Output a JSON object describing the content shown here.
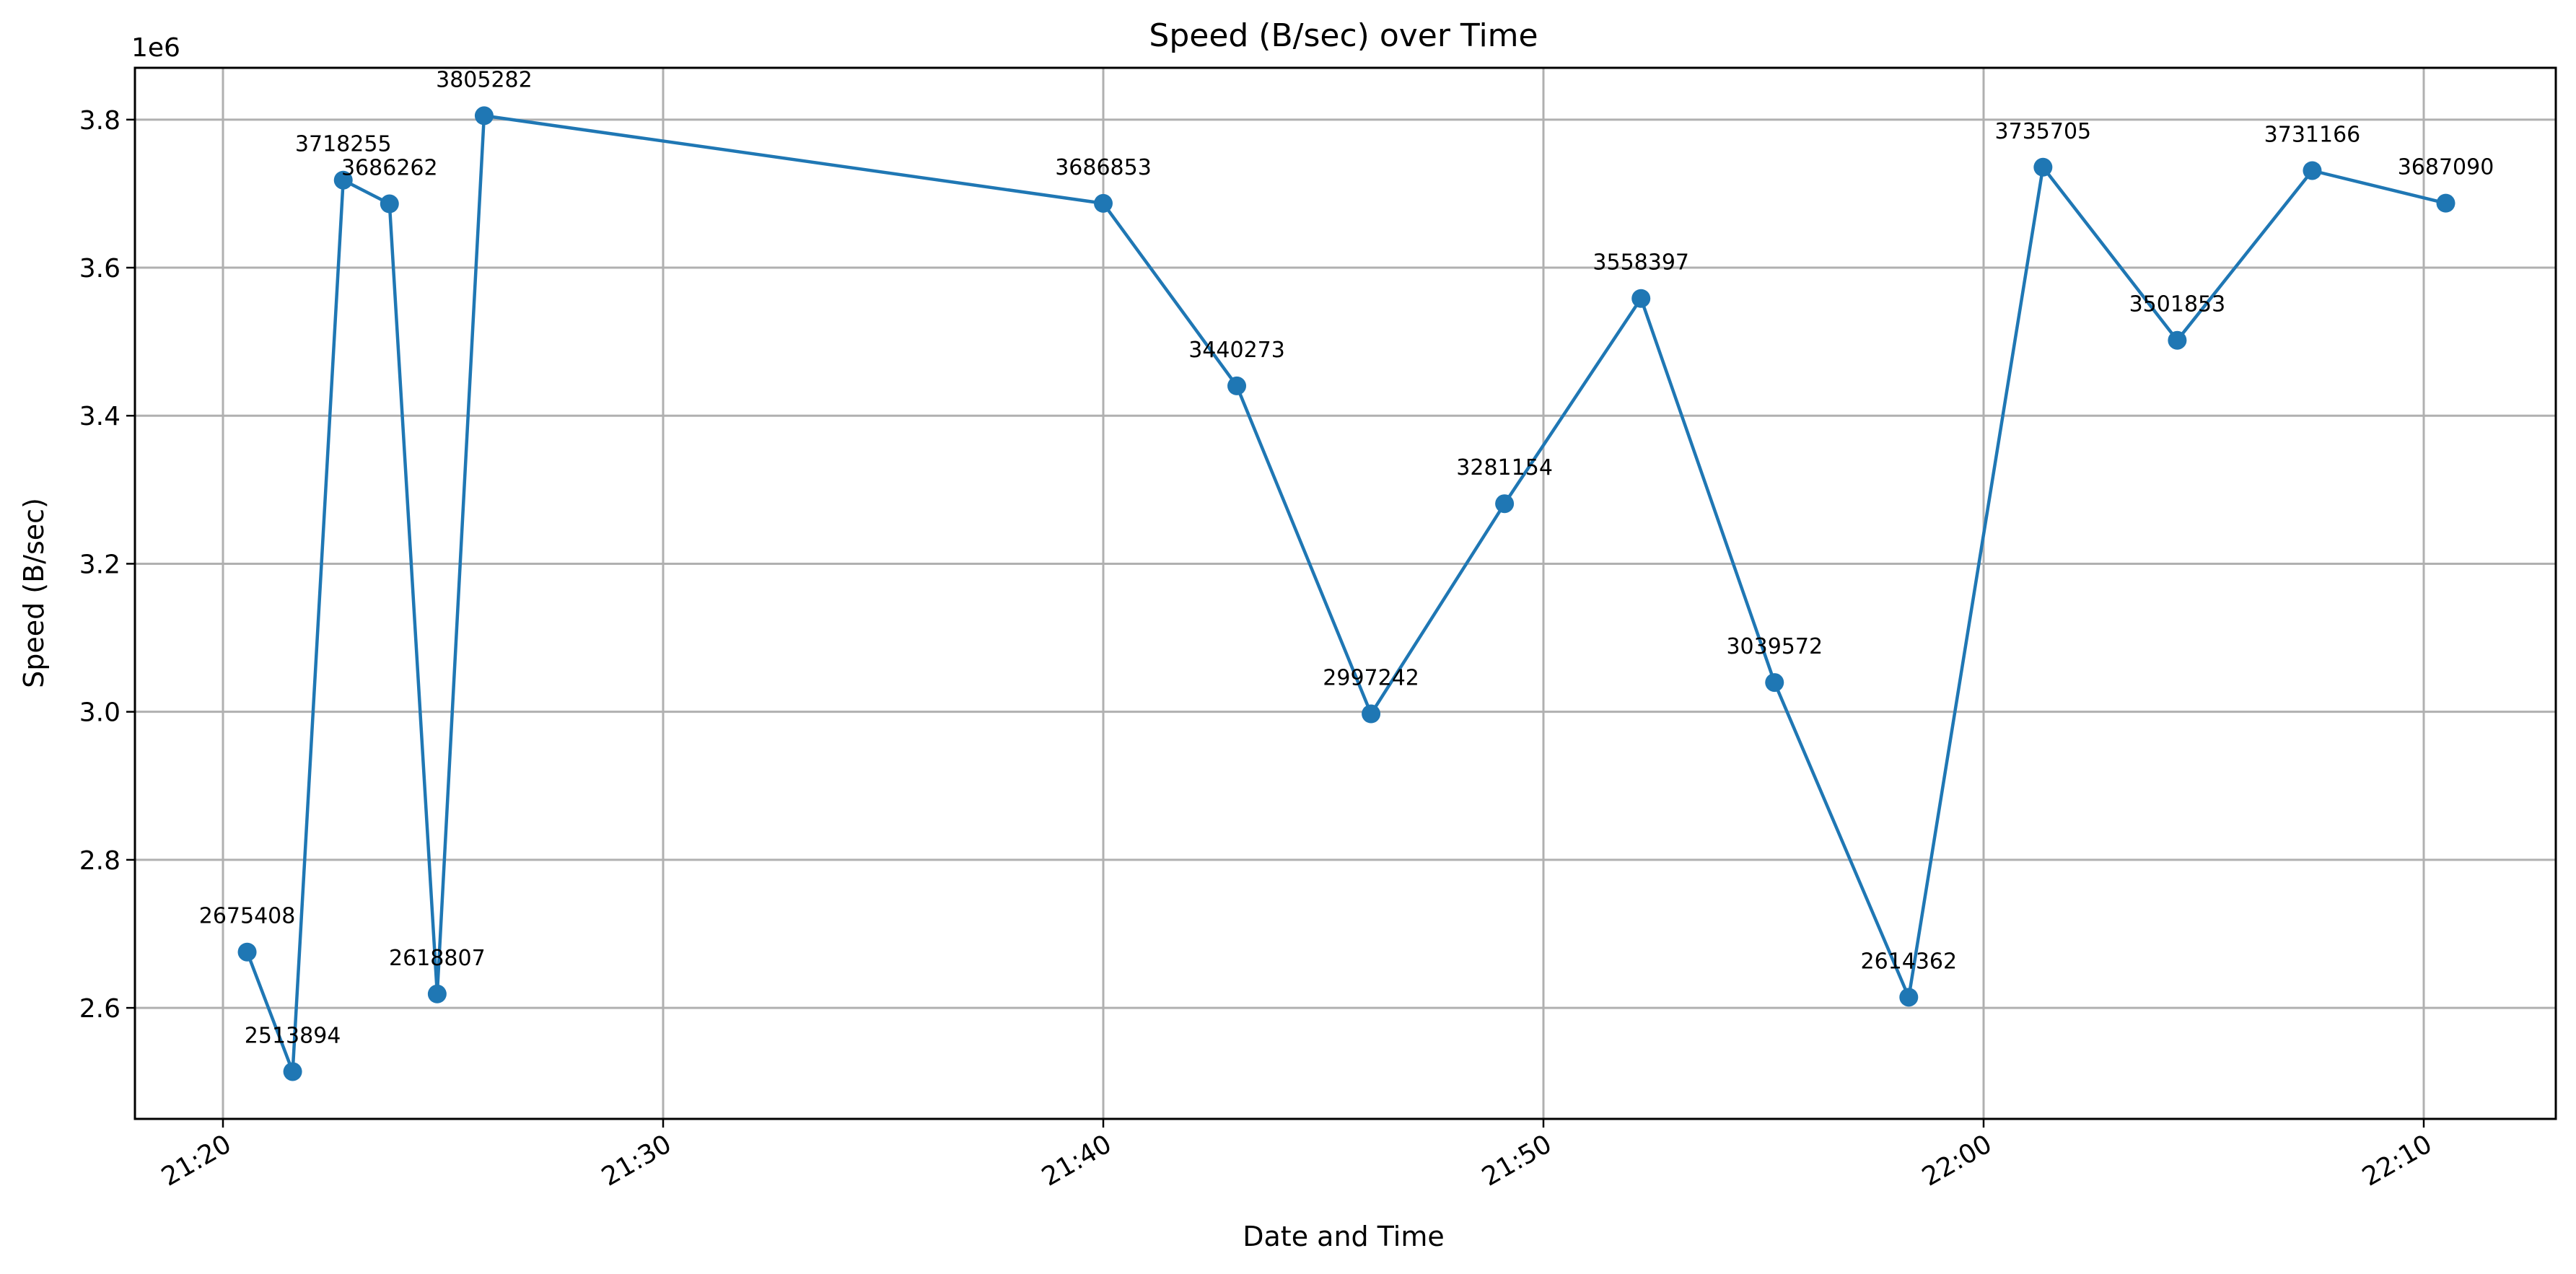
{
  "chart_data": {
    "type": "line",
    "title": "Speed (B/sec) over Time",
    "xlabel": "Date and Time",
    "ylabel": "Speed (B/sec)",
    "y_offset_label": "1e6",
    "xlim": [
      "21:18",
      "22:13"
    ],
    "ylim": [
      2450000,
      3870000
    ],
    "x_ticks": [
      "21:20",
      "21:30",
      "21:40",
      "21:50",
      "22:00",
      "22:10"
    ],
    "y_ticks": [
      2.6,
      2.8,
      3.0,
      3.2,
      3.4,
      3.6,
      3.8
    ],
    "grid": true,
    "color": "#1f77b4",
    "series": [
      {
        "x": [
          "21:20:33",
          "21:21:35",
          "21:22:44",
          "21:23:47",
          "21:24:52",
          "21:25:56",
          "21:40:00",
          "21:43:02",
          "21:46:05",
          "21:49:07",
          "21:52:13",
          "21:55:15",
          "21:58:18",
          "22:01:21",
          "22:04:24",
          "22:07:28",
          "22:10:30"
        ],
        "y": [
          2675408,
          2513894,
          3718255,
          3686262,
          2618807,
          3805282,
          3686853,
          3440273,
          2997242,
          3281154,
          3558397,
          3039572,
          2614362,
          3735705,
          3501853,
          3731166,
          3687090
        ],
        "labels": [
          "2675408",
          "2513894",
          "3718255",
          "3686262",
          "2618807",
          "3805282",
          "3686853",
          "3440273",
          "2997242",
          "3281154",
          "3558397",
          "3039572",
          "2614362",
          "3735705",
          "3501853",
          "3731166",
          "3687090"
        ]
      }
    ]
  }
}
